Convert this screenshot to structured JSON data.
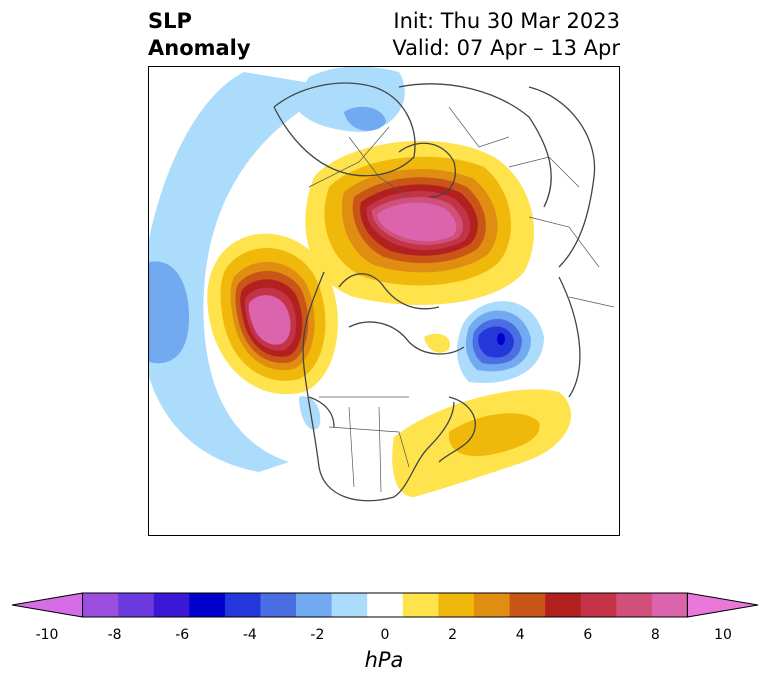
{
  "title": {
    "left_line1": "SLP",
    "left_line2": "Anomaly",
    "right_line1": "Init: Thu 30 Mar 2023",
    "right_line2": "Valid: 07 Apr – 13 Apr"
  },
  "colorbar": {
    "unit": "hPa",
    "ticks": [
      "-10",
      "-8",
      "-6",
      "-4",
      "-2",
      "0",
      "2",
      "4",
      "6",
      "8",
      "10"
    ],
    "levels": [
      -10,
      -9,
      -8,
      -7,
      -6,
      -5,
      -4,
      -3,
      -2,
      -1,
      1,
      2,
      3,
      4,
      5,
      6,
      7,
      8,
      9,
      10
    ],
    "colors": [
      "#d56de6",
      "#9b4fdf",
      "#6c3be0",
      "#3a18d4",
      "#0000cd",
      "#2337db",
      "#4c6ee3",
      "#71aaf0",
      "#acdcfb",
      "#ffffff",
      "#fee34d",
      "#f1b80c",
      "#df8e12",
      "#c95517",
      "#b32020",
      "#c33448",
      "#d0507a",
      "#db64ad",
      "#ea78d9"
    ],
    "extend": "both"
  },
  "map_features": {
    "projection": "north polar stereographic",
    "field": "sea level pressure anomaly",
    "anomalies": [
      {
        "region": "Arctic / Canadian Archipelago",
        "sign": "positive",
        "peak_hpa": 10
      },
      {
        "region": "Gulf of Alaska / Pacific NW",
        "sign": "positive",
        "peak_hpa": 10
      },
      {
        "region": "Eastern US / W Atlantic",
        "sign": "positive",
        "peak_hpa": 4
      },
      {
        "region": "Scandinavia / N Europe",
        "sign": "negative",
        "peak_hpa": -6
      },
      {
        "region": "Western Pacific arc",
        "sign": "negative",
        "peak_hpa": -3
      }
    ]
  }
}
